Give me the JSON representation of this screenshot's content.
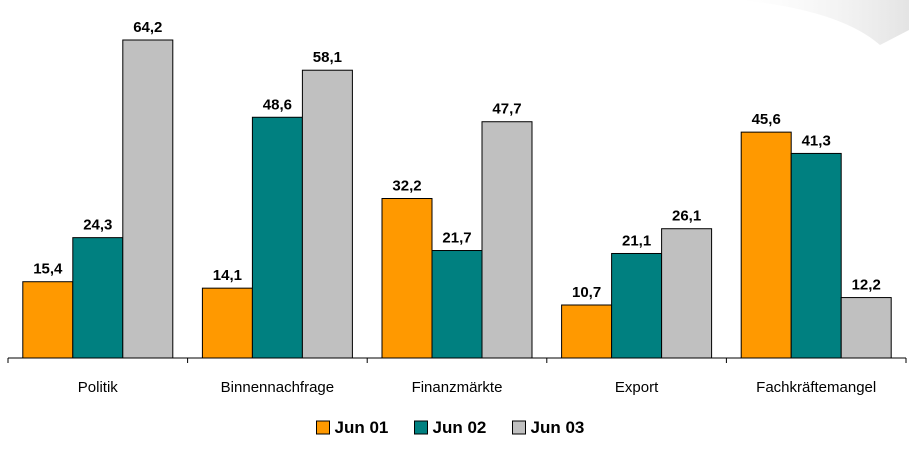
{
  "chart_data": {
    "type": "bar",
    "categories": [
      "Politik",
      "Binnennachfrage",
      "Finanzmärkte",
      "Export",
      "Fachkräftemangel"
    ],
    "series": [
      {
        "name": "Jun 01",
        "values": [
          15.4,
          14.1,
          32.2,
          10.7,
          45.6
        ],
        "labels": [
          "15,4",
          "14,1",
          "32,2",
          "10,7",
          "45,6"
        ],
        "color": "#FF9900"
      },
      {
        "name": "Jun 02",
        "values": [
          24.3,
          48.6,
          21.7,
          21.1,
          41.3
        ],
        "labels": [
          "24,3",
          "48,6",
          "21,7",
          "21,1",
          "41,3"
        ],
        "color": "#008080"
      },
      {
        "name": "Jun 03",
        "values": [
          64.2,
          58.1,
          47.7,
          26.1,
          12.2
        ],
        "labels": [
          "64,2",
          "58,1",
          "47,7",
          "26,1",
          "12,2"
        ],
        "color": "#C0C0C0"
      }
    ],
    "ylim": [
      0,
      64.2
    ],
    "grid": false,
    "legend": "bottom"
  }
}
